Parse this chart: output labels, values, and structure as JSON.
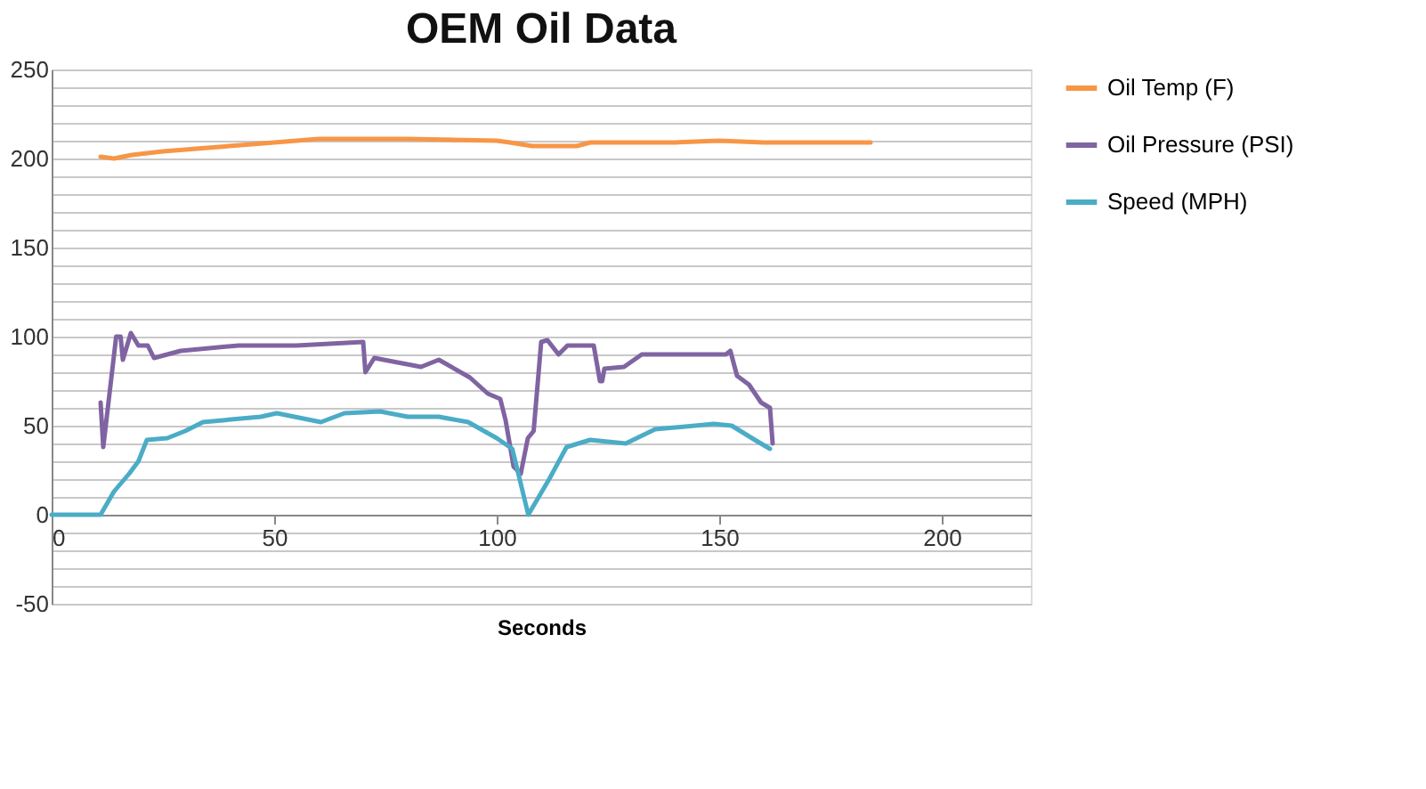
{
  "chart_data": {
    "type": "line",
    "title": "OEM Oil Data",
    "xlabel": "Seconds",
    "xlim": [
      0,
      220
    ],
    "xticks": [
      0,
      50,
      100,
      150,
      200
    ],
    "ylim": [
      -50,
      250
    ],
    "yticks": [
      -50,
      {
        "value": -40,
        "label": null
      },
      {
        "value": -30,
        "label": null
      },
      {
        "value": -20,
        "label": null
      },
      {
        "value": -10,
        "label": null
      },
      0,
      {
        "value": 10,
        "label": null
      },
      {
        "value": 20,
        "label": null
      },
      {
        "value": 30,
        "label": null
      },
      {
        "value": 40,
        "label": null
      },
      50,
      {
        "value": 60,
        "label": null
      },
      {
        "value": 70,
        "label": null
      },
      {
        "value": 80,
        "label": null
      },
      {
        "value": 90,
        "label": null
      },
      100,
      {
        "value": 110,
        "label": null
      },
      {
        "value": 120,
        "label": null
      },
      {
        "value": 130,
        "label": null
      },
      {
        "value": 140,
        "label": null
      },
      150,
      {
        "value": 160,
        "label": null
      },
      {
        "value": 170,
        "label": null
      },
      {
        "value": 180,
        "label": null
      },
      {
        "value": 190,
        "label": null
      },
      200,
      {
        "value": 210,
        "label": null
      },
      {
        "value": 220,
        "label": null
      },
      {
        "value": 230,
        "label": null
      },
      {
        "value": 240,
        "label": null
      },
      250
    ],
    "grid": "y",
    "legend": "right",
    "marker": "none",
    "line_style": "solid",
    "series": [
      {
        "name": "Oil Temp (F)",
        "color": "#f79646",
        "x": [
          11,
          14,
          18,
          25,
          35,
          45,
          50,
          60,
          80,
          100,
          103,
          108,
          118,
          121,
          140,
          150,
          160,
          170,
          184
        ],
        "values": [
          201,
          200,
          202,
          204,
          206,
          208,
          209,
          211,
          211,
          210,
          209,
          207,
          207,
          209,
          209,
          210,
          209,
          209,
          209
        ]
      },
      {
        "name": "Oil Pressure (PSI)",
        "color": "#8064a2",
        "x": [
          11,
          11.6,
          14.5,
          15.5,
          16,
          17.8,
          19.5,
          21.6,
          23,
          29,
          42,
          55,
          70,
          70.5,
          72.5,
          83,
          87,
          94,
          98,
          100.8,
          102,
          103.8,
          105.4,
          107,
          108.3,
          110,
          111.4,
          113.9,
          115.9,
          121.8,
          123.2,
          123.7,
          124.2,
          128.6,
          132.6,
          151.5,
          152.5,
          154,
          156.7,
          159.4,
          161.4,
          162
        ],
        "values": [
          63,
          38,
          100,
          100,
          87,
          102,
          95,
          95,
          88,
          92,
          95,
          95,
          97,
          80,
          88,
          83,
          87,
          77,
          68,
          65,
          53,
          27,
          23,
          43,
          47,
          97,
          98,
          90,
          95,
          95,
          75,
          75,
          82,
          83,
          90,
          90,
          92,
          78,
          73,
          63,
          60,
          40
        ]
      },
      {
        "name": "Speed (MPH)",
        "color": "#4bacc6",
        "x": [
          0,
          11,
          14,
          17.4,
          19.5,
          21.4,
          26,
          30,
          34,
          47,
          50.6,
          60.5,
          65.8,
          73.8,
          80,
          87,
          93.6,
          100,
          103.5,
          107.1,
          111.8,
          115.7,
          121,
          129,
          135.6,
          148.8,
          152.8,
          158,
          161.4
        ],
        "values": [
          0,
          0,
          13,
          23,
          30,
          42,
          43,
          47,
          52,
          55,
          57,
          52,
          57,
          58,
          55,
          55,
          52,
          43,
          37,
          0,
          20,
          38,
          42,
          40,
          48,
          51,
          50,
          42,
          37
        ]
      }
    ]
  }
}
